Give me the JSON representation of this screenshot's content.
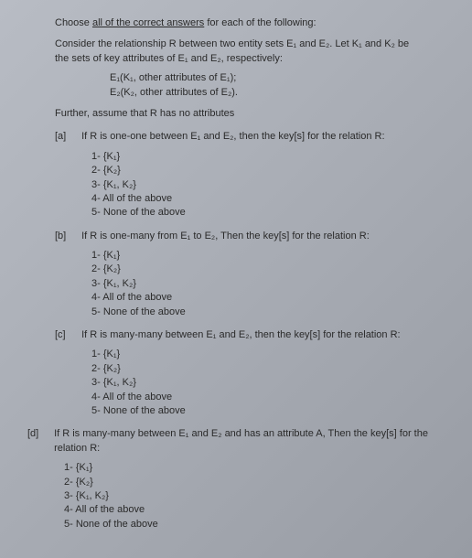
{
  "instruction_prefix": "Choose ",
  "instruction_underlined": "all of the correct answers",
  "instruction_suffix": " for each of the following:",
  "context_line1": "Consider the relationship R between two entity sets E₁ and E₂. Let K₁ and K₂ be",
  "context_line2": "the sets of key attributes of E₁ and E₂, respectively:",
  "entity_def1": "E₁(K₁, other attributes of E₁);",
  "entity_def2": "E₂(K₂, other attributes of E₂).",
  "assumption": "Further, assume that R has no attributes",
  "questions": {
    "a": {
      "label": "[a]",
      "text": "If R is one-one between E₁ and E₂, then the key[s] for the relation R:",
      "opt1": "1- {K₁}",
      "opt2": "2- {K₂}",
      "opt3": "3- {K₁, K₂}",
      "opt4": "4- All of the above",
      "opt5": "5- None of the above"
    },
    "b": {
      "label": "[b]",
      "text": "If R is one-many from E₁ to E₂, Then the key[s] for the relation R:",
      "opt1": "1- {K₁}",
      "opt2": "2- {K₂}",
      "opt3": "3- {K₁, K₂}",
      "opt4": "4- All of the above",
      "opt5": "5- None of the above"
    },
    "c": {
      "label": "[c]",
      "text": "If R is many-many between E₁ and E₂, then the key[s] for the relation R:",
      "opt1": "1- {K₁}",
      "opt2": "2- {K₂}",
      "opt3": "3- {K₁, K₂}",
      "opt4": "4- All of the above",
      "opt5": "5- None of the above"
    },
    "d": {
      "label": "[d]",
      "text": "If R is many-many between E₁ and E₂ and has an attribute A, Then the key[s] for the relation R:",
      "opt1": "1- {K₁}",
      "opt2": "2- {K₂}",
      "opt3": "3- {K₁, K₂}",
      "opt4": "4- All of the above",
      "opt5": "5- None of the above"
    }
  }
}
